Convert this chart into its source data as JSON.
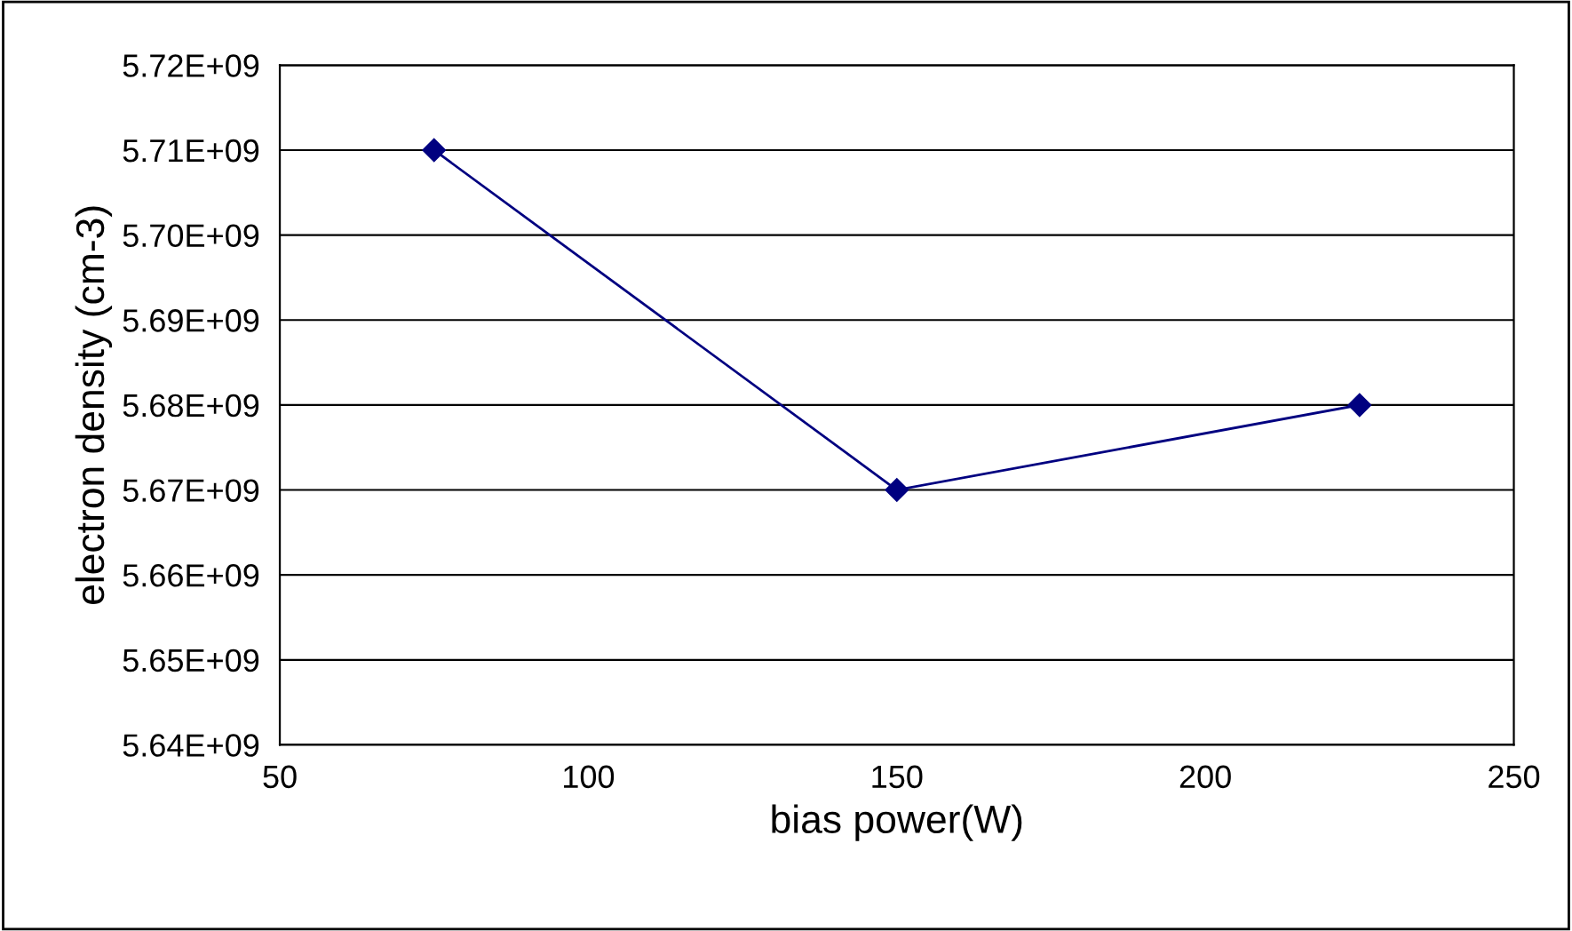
{
  "chart_data": {
    "type": "line",
    "xlabel": "bias power(W)",
    "ylabel": "electron density (cm-3)",
    "x": [
      75,
      150,
      225
    ],
    "series": [
      {
        "color": "#000080",
        "values": [
          5710000000.0,
          5670000000.0,
          5680000000.0
        ]
      }
    ],
    "xlim": [
      50,
      250
    ],
    "xticks": [
      50,
      100,
      150,
      200,
      250
    ],
    "ylim": [
      5640000000.0,
      5720000000.0
    ],
    "yticks": [
      {
        "value": 5640000000.0,
        "label": "5.64E+09"
      },
      {
        "value": 5650000000.0,
        "label": "5.65E+09"
      },
      {
        "value": 5660000000.0,
        "label": "5.66E+09"
      },
      {
        "value": 5670000000.0,
        "label": "5.67E+09"
      },
      {
        "value": 5680000000.0,
        "label": "5.68E+09"
      },
      {
        "value": 5690000000.0,
        "label": "5.69E+09"
      },
      {
        "value": 5700000000.0,
        "label": "5.70E+09"
      },
      {
        "value": 5710000000.0,
        "label": "5.71E+09"
      },
      {
        "value": 5720000000.0,
        "label": "5.72E+09"
      }
    ],
    "grid": "y",
    "marker": "diamond",
    "line_style": "solid",
    "legend": false
  }
}
